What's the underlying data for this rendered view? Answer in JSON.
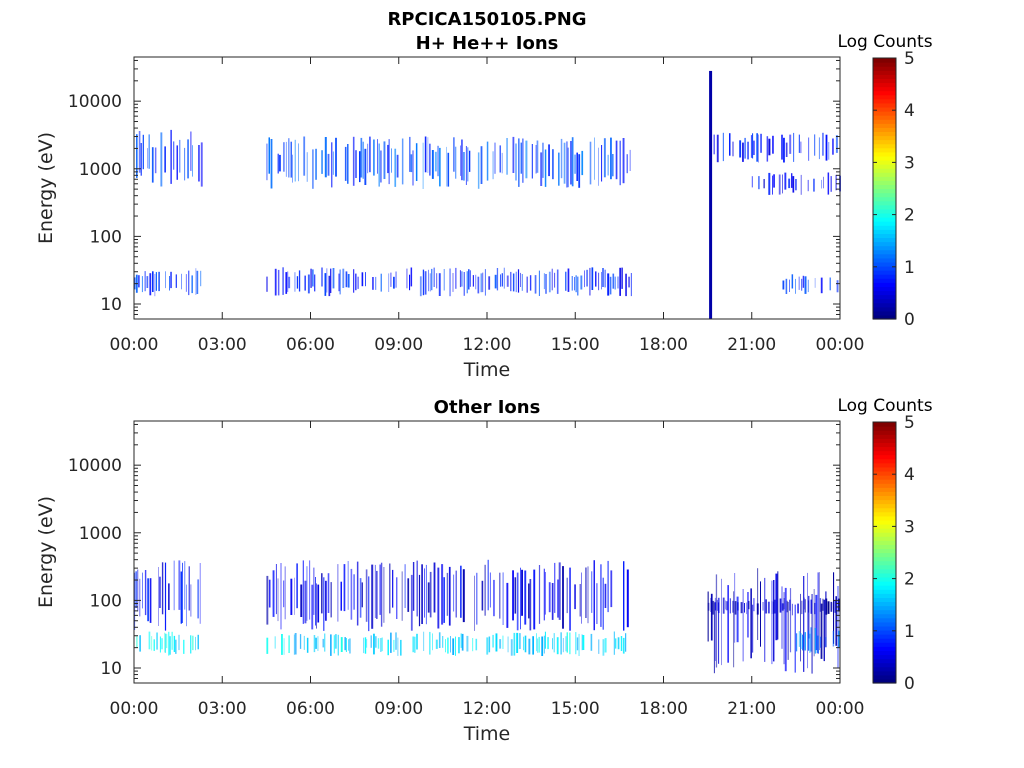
{
  "figure": {
    "title": "RPCICA150105.PNG"
  },
  "chart_data": [
    {
      "type": "heatmap",
      "title": "H+ He++ Ions",
      "xlabel": "Time",
      "ylabel": "Energy (eV)",
      "x_ticks": [
        "00:00",
        "03:00",
        "06:00",
        "09:00",
        "12:00",
        "15:00",
        "18:00",
        "21:00",
        "00:00"
      ],
      "x_range_hours": [
        0,
        24
      ],
      "y_scale": "log",
      "y_ticks": [
        10,
        100,
        1000,
        10000
      ],
      "y_range": [
        6,
        45000
      ],
      "colorbar": {
        "label": "Log Counts",
        "range": [
          0,
          5
        ],
        "ticks": [
          0,
          1,
          2,
          3,
          4,
          5
        ],
        "colormap": "jet"
      },
      "grid": false,
      "data_gap_hours": [
        [
          2.3,
          4.5
        ],
        [
          16.9,
          19.5
        ]
      ],
      "features": [
        {
          "hours": [
            0.0,
            2.3
          ],
          "energy_eV": [
            13,
            35
          ],
          "log_counts": 0.9
        },
        {
          "hours": [
            0.0,
            2.3
          ],
          "energy_eV": [
            500,
            4000
          ],
          "log_counts": 0.9
        },
        {
          "hours": [
            4.5,
            16.9
          ],
          "energy_eV": [
            13,
            35
          ],
          "log_counts": 0.8
        },
        {
          "hours": [
            4.5,
            16.9
          ],
          "energy_eV": [
            500,
            3000
          ],
          "log_counts": 1.0
        },
        {
          "hours": [
            19.55,
            19.65
          ],
          "energy_eV": [
            6,
            28000
          ],
          "log_counts": 0.2
        },
        {
          "hours": [
            19.7,
            24.0
          ],
          "energy_eV": [
            1200,
            3500
          ],
          "log_counts": 0.7
        },
        {
          "hours": [
            21.0,
            24.0
          ],
          "energy_eV": [
            400,
            900
          ],
          "log_counts": 0.6
        },
        {
          "hours": [
            22.0,
            24.0
          ],
          "energy_eV": [
            14,
            28
          ],
          "log_counts": 0.8
        }
      ]
    },
    {
      "type": "heatmap",
      "title": "Other Ions",
      "xlabel": "Time",
      "ylabel": "Energy (eV)",
      "x_ticks": [
        "00:00",
        "03:00",
        "06:00",
        "09:00",
        "12:00",
        "15:00",
        "18:00",
        "21:00",
        "00:00"
      ],
      "x_range_hours": [
        0,
        24
      ],
      "y_scale": "log",
      "y_ticks": [
        10,
        100,
        1000,
        10000
      ],
      "y_range": [
        6,
        45000
      ],
      "colorbar": {
        "label": "Log Counts",
        "range": [
          0,
          5
        ],
        "ticks": [
          0,
          1,
          2,
          3,
          4,
          5
        ],
        "colormap": "jet"
      },
      "grid": false,
      "data_gap_hours": [
        [
          2.3,
          4.5
        ],
        [
          16.9,
          19.5
        ]
      ],
      "features": [
        {
          "hours": [
            0.0,
            2.3
          ],
          "energy_eV": [
            15,
            35
          ],
          "log_counts": 1.8
        },
        {
          "hours": [
            0.0,
            2.3
          ],
          "energy_eV": [
            35,
            400
          ],
          "log_counts": 0.6
        },
        {
          "hours": [
            4.5,
            16.9
          ],
          "energy_eV": [
            15,
            35
          ],
          "log_counts": 1.7
        },
        {
          "hours": [
            4.5,
            16.9
          ],
          "energy_eV": [
            35,
            400
          ],
          "log_counts": 0.5
        },
        {
          "hours": [
            19.5,
            24.0
          ],
          "energy_eV": [
            60,
            110
          ],
          "log_counts": 0.3
        },
        {
          "hours": [
            19.5,
            24.0
          ],
          "energy_eV": [
            8,
            300
          ],
          "log_counts": 0.4
        },
        {
          "hours": [
            22.5,
            24.0
          ],
          "energy_eV": [
            15,
            40
          ],
          "log_counts": 1.2
        }
      ]
    }
  ]
}
